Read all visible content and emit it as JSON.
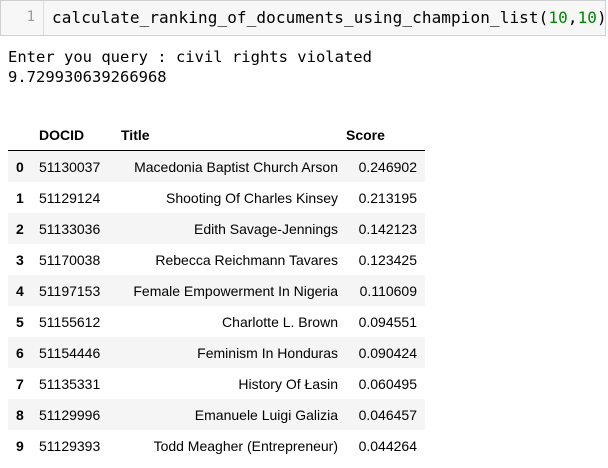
{
  "input_cell": {
    "line_number": "1",
    "code_prefix": "calculate_ranking_of_documents_using_champion_list(",
    "arg1": "10",
    "comma": ",",
    "arg2": "10",
    "code_suffix": ")"
  },
  "output": {
    "prompt_line": "Enter you query : civil rights violated",
    "value_line": "9.729930639266968"
  },
  "table": {
    "columns": [
      "",
      "DOCID",
      "Title",
      "Score"
    ],
    "rows": [
      {
        "index": "0",
        "docid": "51130037",
        "title": "Macedonia Baptist Church Arson",
        "score": "0.246902"
      },
      {
        "index": "1",
        "docid": "51129124",
        "title": "Shooting Of Charles Kinsey",
        "score": "0.213195"
      },
      {
        "index": "2",
        "docid": "51133036",
        "title": "Edith Savage-Jennings",
        "score": "0.142123"
      },
      {
        "index": "3",
        "docid": "51170038",
        "title": "Rebecca Reichmann Tavares",
        "score": "0.123425"
      },
      {
        "index": "4",
        "docid": "51197153",
        "title": "Female Empowerment In Nigeria",
        "score": "0.110609"
      },
      {
        "index": "5",
        "docid": "51155612",
        "title": "Charlotte L. Brown",
        "score": "0.094551"
      },
      {
        "index": "6",
        "docid": "51154446",
        "title": "Feminism In Honduras",
        "score": "0.090424"
      },
      {
        "index": "7",
        "docid": "51135331",
        "title": "History Of Łasin",
        "score": "0.060495"
      },
      {
        "index": "8",
        "docid": "51129996",
        "title": "Emanuele Luigi Galizia",
        "score": "0.046457"
      },
      {
        "index": "9",
        "docid": "51129393",
        "title": "Todd Meagher (Entrepreneur)",
        "score": "0.044264"
      }
    ]
  }
}
